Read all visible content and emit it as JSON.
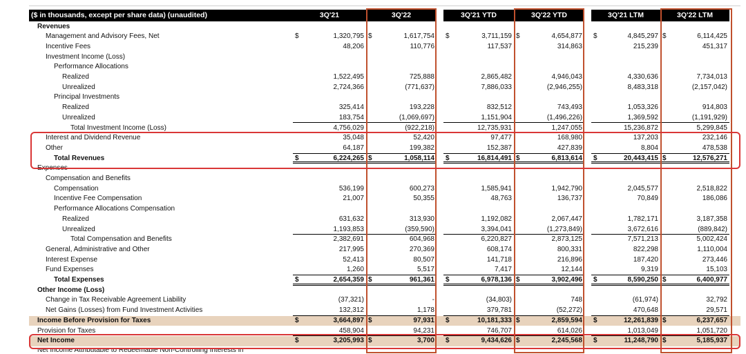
{
  "header": {
    "title": "($ in thousands, except per share data) (unaudited)",
    "columns": [
      "3Q'21",
      "3Q'22",
      "3Q'21 YTD",
      "3Q'22 YTD",
      "3Q'21 LTM",
      "3Q'22 LTM"
    ]
  },
  "currency_symbol": "$",
  "rows": [
    {
      "label": "Revenues",
      "bold": true,
      "indent": 0,
      "values": [
        "",
        "",
        "",
        "",
        "",
        ""
      ]
    },
    {
      "label": "Management and Advisory Fees, Net",
      "indent": 1,
      "dollar": true,
      "values": [
        "1,320,795",
        "1,617,754",
        "3,711,159",
        "4,654,877",
        "4,845,297",
        "6,114,425"
      ]
    },
    {
      "label": "Incentive Fees",
      "indent": 1,
      "values": [
        "48,206",
        "110,776",
        "117,537",
        "314,863",
        "215,239",
        "451,317"
      ]
    },
    {
      "label": "Investment Income (Loss)",
      "indent": 1,
      "values": [
        "",
        "",
        "",
        "",
        "",
        ""
      ]
    },
    {
      "label": "Performance Allocations",
      "indent": 2,
      "values": [
        "",
        "",
        "",
        "",
        "",
        ""
      ]
    },
    {
      "label": "Realized",
      "indent": 3,
      "values": [
        "1,522,495",
        "725,888",
        "2,865,482",
        "4,946,043",
        "4,330,636",
        "7,734,013"
      ]
    },
    {
      "label": "Unrealized",
      "indent": 3,
      "values": [
        "2,724,366",
        "(771,637)",
        "7,886,033",
        "(2,946,255)",
        "8,483,318",
        "(2,157,042)"
      ]
    },
    {
      "label": "Principal Investments",
      "indent": 2,
      "values": [
        "",
        "",
        "",
        "",
        "",
        ""
      ]
    },
    {
      "label": "Realized",
      "indent": 3,
      "values": [
        "325,414",
        "193,228",
        "832,512",
        "743,493",
        "1,053,326",
        "914,803"
      ]
    },
    {
      "label": "Unrealized",
      "indent": 3,
      "underline": true,
      "values": [
        "183,754",
        "(1,069,697)",
        "1,151,904",
        "(1,496,226)",
        "1,369,592",
        "(1,191,929)"
      ]
    },
    {
      "label": "Total Investment Income (Loss)",
      "indent": 4,
      "values": [
        "4,756,029",
        "(922,218)",
        "12,735,931",
        "1,247,055",
        "15,236,872",
        "5,299,845"
      ]
    },
    {
      "label": "Interest and Dividend Revenue",
      "indent": 1,
      "values": [
        "35,048",
        "52,420",
        "97,477",
        "168,980",
        "137,203",
        "232,146"
      ]
    },
    {
      "label": "Other",
      "indent": 1,
      "underline": true,
      "values": [
        "64,187",
        "199,382",
        "152,387",
        "427,839",
        "8,804",
        "478,538"
      ]
    },
    {
      "label": "Total Revenues",
      "indent": 2,
      "bold": true,
      "dollar": true,
      "double": true,
      "values": [
        "6,224,265",
        "1,058,114",
        "16,814,491",
        "6,813,614",
        "20,443,415",
        "12,576,271"
      ]
    },
    {
      "label": "Expenses",
      "indent": 0,
      "values": [
        "",
        "",
        "",
        "",
        "",
        ""
      ]
    },
    {
      "label": "Compensation and Benefits",
      "indent": 1,
      "values": [
        "",
        "",
        "",
        "",
        "",
        ""
      ]
    },
    {
      "label": "Compensation",
      "indent": 2,
      "values": [
        "536,199",
        "600,273",
        "1,585,941",
        "1,942,790",
        "2,045,577",
        "2,518,822"
      ]
    },
    {
      "label": "Incentive Fee Compensation",
      "indent": 2,
      "values": [
        "21,007",
        "50,355",
        "48,763",
        "136,737",
        "70,849",
        "186,086"
      ]
    },
    {
      "label": "Performance Allocations Compensation",
      "indent": 2,
      "values": [
        "",
        "",
        "",
        "",
        "",
        ""
      ]
    },
    {
      "label": "Realized",
      "indent": 3,
      "values": [
        "631,632",
        "313,930",
        "1,192,082",
        "2,067,447",
        "1,782,171",
        "3,187,358"
      ]
    },
    {
      "label": "Unrealized",
      "indent": 3,
      "underline": true,
      "values": [
        "1,193,853",
        "(359,590)",
        "3,394,041",
        "(1,273,849)",
        "3,672,616",
        "(889,842)"
      ]
    },
    {
      "label": "Total Compensation and Benefits",
      "indent": 4,
      "values": [
        "2,382,691",
        "604,968",
        "6,220,827",
        "2,873,125",
        "7,571,213",
        "5,002,424"
      ]
    },
    {
      "label": "General, Administrative and Other",
      "indent": 1,
      "values": [
        "217,995",
        "270,369",
        "608,174",
        "800,331",
        "822,298",
        "1,110,004"
      ]
    },
    {
      "label": "Interest Expense",
      "indent": 1,
      "values": [
        "52,413",
        "80,507",
        "141,718",
        "216,896",
        "187,420",
        "273,446"
      ]
    },
    {
      "label": "Fund Expenses",
      "indent": 1,
      "underline": true,
      "values": [
        "1,260",
        "5,517",
        "7,417",
        "12,144",
        "9,319",
        "15,103"
      ]
    },
    {
      "label": "Total Expenses",
      "indent": 2,
      "bold": true,
      "dollar": true,
      "double": true,
      "values": [
        "2,654,359",
        "961,361",
        "6,978,136",
        "3,902,496",
        "8,590,250",
        "6,400,977"
      ]
    },
    {
      "label": "Other Income (Loss)",
      "indent": 0,
      "bold": true,
      "values": [
        "",
        "",
        "",
        "",
        "",
        ""
      ]
    },
    {
      "label": "Change in Tax Receivable Agreement Liability",
      "indent": 1,
      "values": [
        "(37,321)",
        "-",
        "(34,803)",
        "748",
        "(61,974)",
        "32,792"
      ]
    },
    {
      "label": "Net Gains (Losses) from Fund Investment Activities",
      "indent": 1,
      "underline": true,
      "values": [
        "132,312",
        "1,178",
        "379,781",
        "(52,272)",
        "470,648",
        "29,571"
      ]
    },
    {
      "label": "Income Before Provision for Taxes",
      "indent": 0,
      "bold": true,
      "band": true,
      "dollar": true,
      "values": [
        "3,664,897",
        "97,931",
        "10,181,333",
        "2,859,594",
        "12,261,839",
        "6,237,657"
      ]
    },
    {
      "label": "Provision for Taxes",
      "indent": 0,
      "underline": true,
      "values": [
        "458,904",
        "94,231",
        "746,707",
        "614,026",
        "1,013,049",
        "1,051,720"
      ]
    },
    {
      "label": "Net Income",
      "indent": 0,
      "bold": true,
      "band": true,
      "dollar": true,
      "values": [
        "3,205,993",
        "3,700",
        "9,434,626",
        "2,245,568",
        "11,248,790",
        "5,185,937"
      ]
    }
  ],
  "cutoff_label": "Net Income Attributable to Redeemable Non-Controlling Interests in"
}
